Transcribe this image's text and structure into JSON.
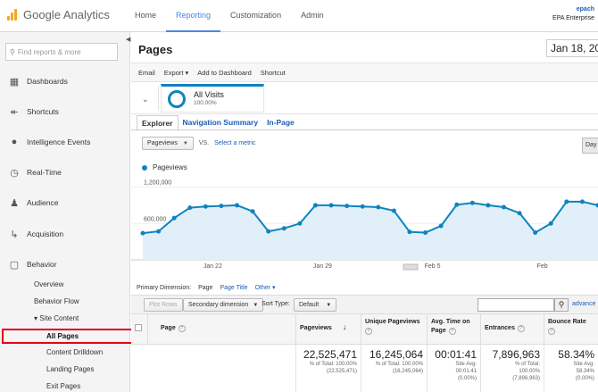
{
  "app": {
    "logo_google": "Google",
    "logo_analytics": "Analytics",
    "nav": [
      "Home",
      "Reporting",
      "Customization",
      "Admin"
    ],
    "active_nav": "Reporting",
    "account_email": "epach",
    "account_name": "EPA Enterprise"
  },
  "sidebar": {
    "search_placeholder": "Find reports & more",
    "items": [
      {
        "label": "Dashboards",
        "icon": "grid-icon"
      },
      {
        "label": "Shortcuts",
        "icon": "shortcut-arrow-icon"
      },
      {
        "label": "Intelligence Events",
        "icon": "lightbulb-icon"
      },
      {
        "label": "Real-Time",
        "icon": "clock-icon"
      },
      {
        "label": "Audience",
        "icon": "people-icon"
      },
      {
        "label": "Acquisition",
        "icon": "acquisition-arrow-icon"
      },
      {
        "label": "Behavior",
        "icon": "behavior-page-icon"
      }
    ],
    "behavior_sub": [
      "Overview",
      "Behavior Flow",
      "▾ Site Content",
      "All Pages",
      "Content Drilldown",
      "Landing Pages",
      "Exit Pages"
    ]
  },
  "main": {
    "title": "Pages",
    "date": "Jan 18, 20",
    "actions": [
      "Email",
      "Export ▾",
      "Add to Dashboard",
      "Shortcut"
    ],
    "segment": {
      "name": "All Visits",
      "pct": "100.00%"
    },
    "tabs": [
      "Explorer",
      "Navigation Summary",
      "In-Page"
    ],
    "metric": "Pageviews",
    "vs": "VS.",
    "select_metric": "Select a metric",
    "day_button": "Day",
    "legend": "Pageviews",
    "primary_dimension_label": "Primary Dimension:",
    "dims": [
      "Page",
      "Page Title",
      "Other ▾"
    ],
    "plot_rows": "Plot Rows",
    "secondary_dimension": "Secondary dimension",
    "sort_type_label": "Sort Type:",
    "sort_type": "Default",
    "advanced": "advance",
    "columns": [
      "Page",
      "Pageviews",
      "Unique Pageviews",
      "Avg. Time on Page",
      "Entrances",
      "Bounce Rate"
    ],
    "totals": [
      {
        "big": "22,525,471",
        "l1": "% of Total: 100.00%",
        "l2": "(22,525,471)"
      },
      {
        "big": "16,245,064",
        "l1": "% of Total: 100.00%",
        "l2": "(16,245,064)"
      },
      {
        "big": "00:01:41",
        "l1": "Site Avg:",
        "l2": "00:01:41",
        "l3": "(0.00%)"
      },
      {
        "big": "7,896,963",
        "l1": "% of Total:",
        "l2": "100.00%",
        "l3": "(7,896,963)"
      },
      {
        "big": "58.34%",
        "l1": "Site Avg:",
        "l2": "58.34%",
        "l3": "(0.00%)"
      }
    ]
  },
  "chart_data": {
    "type": "area",
    "series": [
      {
        "values": [
          440000,
          470000,
          690000,
          860000,
          880000,
          890000,
          900000,
          800000,
          470000,
          520000,
          600000,
          900000,
          900000,
          890000,
          880000,
          870000,
          810000,
          460000,
          450000,
          560000,
          910000,
          940000,
          900000,
          870000,
          770000,
          450000,
          600000,
          960000,
          960000,
          900000
        ]
      }
    ],
    "ylim": [
      0,
      1400000
    ],
    "y_ticks": [
      "1,200,000",
      "600,000"
    ],
    "x_ticks": [
      "Jan 22",
      "Jan 29",
      "Feb 5",
      "Feb"
    ],
    "color": "#0f83c0"
  }
}
